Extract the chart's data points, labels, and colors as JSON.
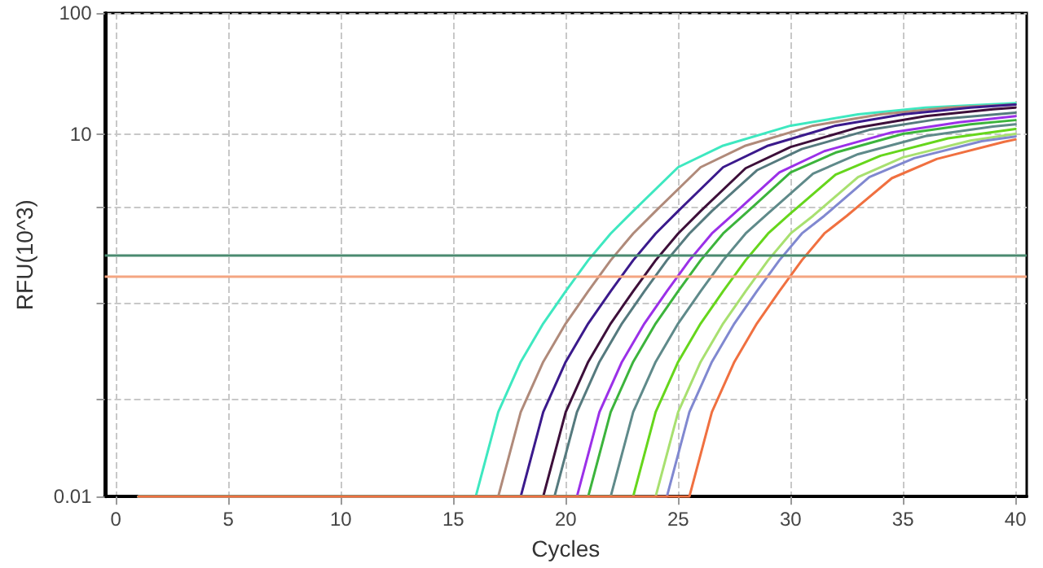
{
  "chart_data": {
    "type": "line",
    "xlabel": "Cycles",
    "ylabel": "RFU(10^3)",
    "log": true,
    "grid": true,
    "marker": "none",
    "line_style": "solid",
    "xlim": [
      -0.5,
      40.5
    ],
    "xticks": [
      0,
      5,
      10,
      15,
      20,
      25,
      30,
      35,
      40
    ],
    "ylim": [
      0.01,
      100
    ],
    "yticks": [
      0.01,
      {
        "value": 0.063,
        "label": null
      },
      {
        "value": 0.4,
        "label": null
      },
      {
        "value": 2.5,
        "label": null
      },
      10,
      100
    ],
    "ref_lines": [
      {
        "axis": "y",
        "value": 1.0,
        "color": "#4a8a70"
      },
      {
        "axis": "y",
        "value": 0.66,
        "color": "#f4a582"
      }
    ],
    "series": [
      {
        "color": "#3ee8c0",
        "x": [
          1,
          16,
          17,
          18,
          19,
          20,
          21,
          22,
          23,
          25,
          27,
          30,
          33,
          36,
          40
        ],
        "values": [
          0.01,
          0.01,
          0.05,
          0.13,
          0.27,
          0.5,
          0.9,
          1.5,
          2.3,
          5.3,
          8,
          11.7,
          14.5,
          16.5,
          18
        ]
      },
      {
        "color": "#b08a7a",
        "x": [
          1,
          17,
          18,
          19,
          20,
          21,
          22,
          23,
          24,
          26,
          28,
          31,
          34,
          37,
          40
        ],
        "values": [
          0.01,
          0.01,
          0.05,
          0.13,
          0.27,
          0.5,
          0.9,
          1.5,
          2.3,
          5.3,
          8,
          11.7,
          14.5,
          16.5,
          17.5
        ]
      },
      {
        "color": "#3b1a8c",
        "x": [
          1,
          18,
          19,
          20,
          21,
          22,
          23,
          24,
          25,
          27,
          29,
          32,
          35,
          38,
          40
        ],
        "values": [
          0.01,
          0.01,
          0.05,
          0.13,
          0.27,
          0.5,
          0.9,
          1.5,
          2.3,
          5.3,
          8,
          11.7,
          14.5,
          16.5,
          17.5
        ]
      },
      {
        "color": "#3d0f3a",
        "x": [
          1,
          19,
          20,
          21,
          22,
          23,
          24,
          25,
          26,
          28,
          30,
          33,
          36,
          39,
          40
        ],
        "values": [
          0.01,
          0.01,
          0.05,
          0.13,
          0.27,
          0.5,
          0.9,
          1.5,
          2.3,
          5.2,
          7.8,
          11.3,
          14,
          16,
          16.5
        ]
      },
      {
        "color": "#557a7e",
        "x": [
          1,
          19.5,
          20.5,
          21.5,
          22.5,
          23.5,
          24.5,
          25.5,
          26.5,
          28.5,
          30.5,
          33.5,
          36.5,
          40
        ],
        "values": [
          0.01,
          0.01,
          0.05,
          0.13,
          0.27,
          0.5,
          0.9,
          1.5,
          2.3,
          5,
          7.5,
          10.8,
          13.2,
          15
        ]
      },
      {
        "color": "#9b30e8",
        "x": [
          1,
          20.5,
          21.5,
          22.5,
          23.5,
          24.5,
          25.5,
          26.5,
          27.5,
          29.5,
          31.5,
          34.5,
          37.5,
          40
        ],
        "values": [
          0.01,
          0.01,
          0.05,
          0.13,
          0.27,
          0.5,
          0.9,
          1.5,
          2.2,
          4.8,
          7.2,
          10.3,
          12.5,
          14
        ]
      },
      {
        "color": "#3cb43c",
        "x": [
          1,
          21,
          22,
          23,
          24,
          25,
          26,
          27,
          28,
          30,
          32,
          35,
          38,
          40
        ],
        "values": [
          0.01,
          0.01,
          0.05,
          0.13,
          0.27,
          0.5,
          0.9,
          1.5,
          2.2,
          4.8,
          7,
          10,
          12,
          13
        ]
      },
      {
        "color": "#5f8a8a",
        "x": [
          1,
          22,
          23,
          24,
          25,
          26,
          27,
          28,
          29,
          31,
          33,
          36,
          39,
          40
        ],
        "values": [
          0.01,
          0.01,
          0.05,
          0.13,
          0.27,
          0.5,
          0.9,
          1.5,
          2.2,
          4.7,
          6.8,
          9.6,
          11.5,
          12
        ]
      },
      {
        "color": "#66d61c",
        "x": [
          1,
          23,
          24,
          25,
          26,
          27,
          28,
          29,
          30,
          32,
          34,
          37,
          40
        ],
        "values": [
          0.01,
          0.01,
          0.05,
          0.13,
          0.27,
          0.5,
          0.9,
          1.5,
          2.2,
          4.6,
          6.6,
          9.2,
          11
        ]
      },
      {
        "color": "#a8e070",
        "x": [
          1,
          24,
          25,
          26,
          27,
          28,
          29,
          30,
          31,
          33,
          35,
          38,
          40
        ],
        "values": [
          0.01,
          0.01,
          0.05,
          0.13,
          0.27,
          0.5,
          0.9,
          1.5,
          2.1,
          4.4,
          6.4,
          8.8,
          10
        ]
      },
      {
        "color": "#8088d0",
        "x": [
          1,
          24.5,
          25.5,
          26.5,
          27.5,
          28.5,
          29.5,
          30.5,
          31.5,
          33.5,
          35.5,
          38.5,
          40
        ],
        "values": [
          0.01,
          0.01,
          0.05,
          0.13,
          0.27,
          0.5,
          0.9,
          1.5,
          2.1,
          4.4,
          6.3,
          8.7,
          9.5
        ]
      },
      {
        "color": "#f07040",
        "x": [
          1,
          25.5,
          26.5,
          27.5,
          28.5,
          29.5,
          30.5,
          31.5,
          32.5,
          34.5,
          36.5,
          39.5,
          40
        ],
        "values": [
          0.01,
          0.01,
          0.05,
          0.13,
          0.27,
          0.5,
          0.9,
          1.5,
          2.1,
          4.3,
          6.2,
          8.6,
          9
        ]
      }
    ]
  }
}
